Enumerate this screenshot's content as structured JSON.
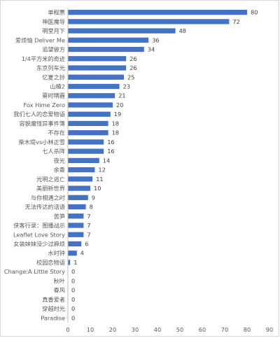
{
  "chart_data": {
    "type": "bar",
    "orientation": "horizontal",
    "title": "",
    "xlabel": "",
    "ylabel": "",
    "xlim": [
      0,
      90
    ],
    "xticks": [
      0,
      10,
      20,
      30,
      40,
      50,
      60,
      70,
      80,
      90
    ],
    "grid": false,
    "bar_color": "#4472c4",
    "categories": [
      "单程票",
      "神医魔导",
      "明堂月下",
      "爱烦恼 Deliver Me",
      "追望彼方",
      "1/4平方米的奇迹",
      "东京列车光",
      "忆夏之铃",
      "山楂2",
      "雾时晴霾",
      "Fox Hime Zero",
      "我们七人的恋爱物语",
      "容貌魔怪异事件簿",
      "不存在",
      "柴木堤vs小林正雪",
      "七人杀阵",
      "夜光",
      "余香",
      "光明之逃亡",
      "美丽新世界",
      "与你相遇之时",
      "无法传达的话语",
      "苦笋",
      "侠客行录：图播战示",
      "Leaflet Love Story",
      "女装妹妹没少过麻烦",
      "水时钟",
      "校园恋物语",
      "Change:A Little Story",
      "秋叶",
      "春风",
      "真香爱者",
      "穿越时光",
      "Paradise"
    ],
    "values": [
      80,
      72,
      48,
      36,
      34,
      26,
      26,
      25,
      23,
      21,
      20,
      19,
      18,
      18,
      16,
      16,
      14,
      12,
      11,
      10,
      9,
      8,
      7,
      7,
      7,
      6,
      4,
      1,
      0,
      0,
      0,
      0,
      0,
      0
    ]
  }
}
